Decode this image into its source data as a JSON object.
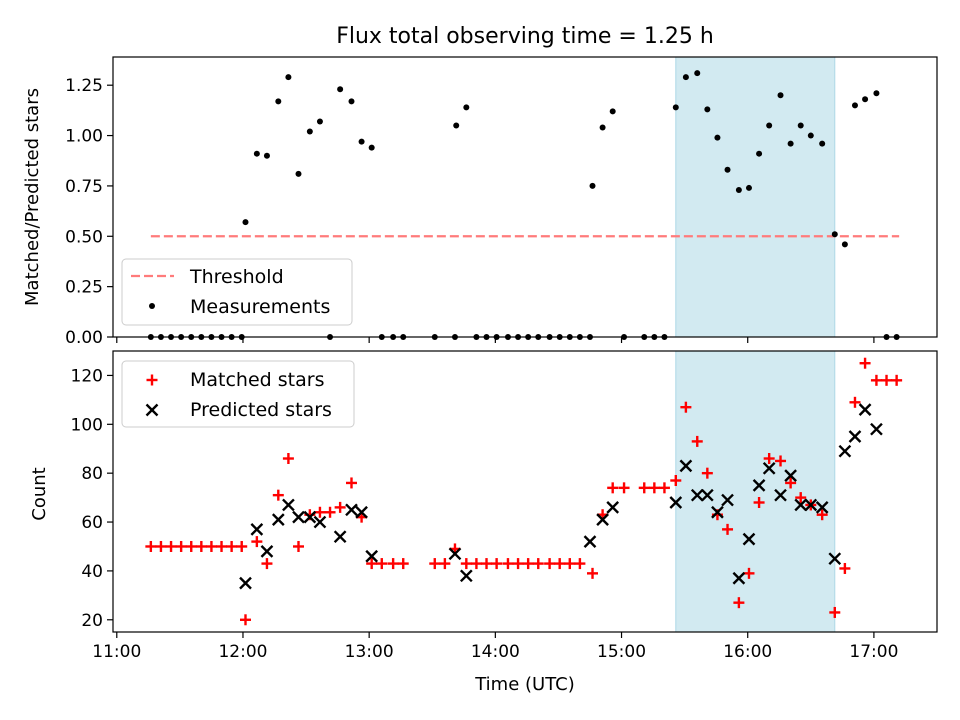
{
  "figure_title": "Flux total observing time = 1.25 h",
  "colors": {
    "threshold": "#ff7b7b",
    "span": "#add8e6",
    "matched": "#ff0000",
    "predicted": "#000000",
    "measurement": "#000000"
  },
  "chart_data": [
    {
      "type": "scatter",
      "title": "Flux total observing time = 1.25 h",
      "xlabel": "",
      "ylabel": "Matched/Predicted stars",
      "xlim": [
        10.97,
        17.5
      ],
      "ylim": [
        0,
        1.39
      ],
      "yticks": [
        0,
        0.25,
        0.5,
        0.75,
        1.0,
        1.25
      ],
      "ytick_labels": [
        "0.00",
        "0.25",
        "0.50",
        "0.75",
        "1.00",
        "1.25"
      ],
      "xticks": [
        11,
        12,
        13,
        14,
        15,
        16,
        17
      ],
      "legend_position": "lower-left",
      "highlight_span": [
        15.43,
        16.69
      ],
      "threshold": {
        "name": "Threshold",
        "value": 0.5,
        "x_range": [
          11.27,
          17.2
        ]
      },
      "series": [
        {
          "name": "Measurements",
          "x": [
            11.27,
            11.35,
            11.43,
            11.51,
            11.59,
            11.67,
            11.75,
            11.83,
            11.91,
            11.99,
            12.02,
            12.11,
            12.19,
            12.28,
            12.36,
            12.44,
            12.53,
            12.61,
            12.69,
            12.77,
            12.86,
            12.94,
            13.02,
            13.1,
            13.19,
            13.27,
            13.52,
            13.68,
            13.69,
            13.77,
            13.85,
            13.93,
            14.01,
            14.1,
            14.18,
            14.26,
            14.34,
            14.43,
            14.51,
            14.59,
            14.67,
            14.75,
            14.77,
            14.85,
            14.93,
            15.02,
            15.18,
            15.26,
            15.34,
            15.43,
            15.51,
            15.6,
            15.68,
            15.76,
            15.84,
            15.93,
            16.01,
            16.09,
            16.17,
            16.26,
            16.34,
            16.42,
            16.5,
            16.59,
            16.69,
            16.77,
            16.85,
            16.93,
            17.02,
            17.1,
            17.18
          ],
          "y": [
            0,
            0,
            0,
            0,
            0,
            0,
            0,
            0,
            0,
            0,
            0.57,
            0.91,
            0.9,
            1.17,
            1.29,
            0.81,
            1.02,
            1.07,
            0,
            1.23,
            1.17,
            0.97,
            0.94,
            0,
            0,
            0,
            0,
            0,
            1.05,
            1.14,
            0,
            0,
            0,
            0,
            0,
            0,
            0,
            0,
            0,
            0,
            0,
            0,
            0.75,
            1.04,
            1.12,
            0,
            0,
            0,
            0,
            1.14,
            1.29,
            1.31,
            1.13,
            0.99,
            0.83,
            0.73,
            0.74,
            0.91,
            1.05,
            1.2,
            0.96,
            1.05,
            1.0,
            0.96,
            0.51,
            0.46,
            1.15,
            1.18,
            1.21,
            0,
            0
          ]
        }
      ]
    },
    {
      "type": "scatter",
      "title": "",
      "xlabel": "Time (UTC)",
      "ylabel": "Count",
      "xlim": [
        10.97,
        17.5
      ],
      "ylim": [
        15,
        130
      ],
      "yticks": [
        20,
        40,
        60,
        80,
        100,
        120
      ],
      "ytick_labels": [
        "20",
        "40",
        "60",
        "80",
        "100",
        "120"
      ],
      "xticks": [
        11,
        12,
        13,
        14,
        15,
        16,
        17
      ],
      "xtick_labels": [
        "11:00",
        "12:00",
        "13:00",
        "14:00",
        "15:00",
        "16:00",
        "17:00"
      ],
      "legend_position": "upper-left",
      "highlight_span": [
        15.43,
        16.69
      ],
      "series": [
        {
          "name": "Matched stars",
          "marker": "plus",
          "x": [
            11.27,
            11.35,
            11.43,
            11.51,
            11.59,
            11.67,
            11.75,
            11.83,
            11.91,
            11.99,
            12.02,
            12.11,
            12.19,
            12.28,
            12.36,
            12.44,
            12.53,
            12.61,
            12.69,
            12.77,
            12.86,
            12.94,
            13.02,
            13.1,
            13.19,
            13.27,
            13.52,
            13.6,
            13.68,
            13.77,
            13.85,
            13.93,
            14.01,
            14.1,
            14.18,
            14.26,
            14.34,
            14.43,
            14.51,
            14.59,
            14.67,
            14.77,
            14.85,
            14.93,
            15.02,
            15.18,
            15.26,
            15.34,
            15.43,
            15.51,
            15.6,
            15.68,
            15.76,
            15.84,
            15.93,
            16.01,
            16.09,
            16.17,
            16.26,
            16.34,
            16.42,
            16.5,
            16.59,
            16.69,
            16.77,
            16.85,
            16.93,
            17.02,
            17.1,
            17.18
          ],
          "y": [
            50,
            50,
            50,
            50,
            50,
            50,
            50,
            50,
            50,
            50,
            20,
            52,
            43,
            71,
            86,
            50,
            63,
            64,
            64,
            66,
            76,
            62,
            43,
            43,
            43,
            43,
            43,
            43,
            49,
            43,
            43,
            43,
            43,
            43,
            43,
            43,
            43,
            43,
            43,
            43,
            43,
            39,
            63,
            74,
            74,
            74,
            74,
            74,
            77,
            107,
            93,
            80,
            63,
            57,
            27,
            39,
            68,
            86,
            85,
            76,
            70,
            67,
            63,
            23,
            41,
            109,
            125,
            118,
            118,
            118
          ]
        },
        {
          "name": "Predicted stars",
          "marker": "x",
          "x": [
            12.02,
            12.11,
            12.19,
            12.28,
            12.36,
            12.44,
            12.53,
            12.61,
            12.77,
            12.86,
            12.94,
            13.02,
            13.68,
            13.77,
            14.75,
            14.85,
            14.93,
            15.43,
            15.51,
            15.6,
            15.68,
            15.76,
            15.84,
            15.93,
            16.01,
            16.09,
            16.17,
            16.26,
            16.34,
            16.42,
            16.5,
            16.59,
            16.69,
            16.77,
            16.85,
            16.93,
            17.02
          ],
          "y": [
            35,
            57,
            48,
            61,
            67,
            62,
            62,
            60,
            54,
            65,
            64,
            46,
            47,
            38,
            52,
            61,
            66,
            68,
            83,
            71,
            71,
            64,
            69,
            37,
            53,
            75,
            82,
            71,
            79,
            67,
            67,
            66,
            45,
            89,
            95,
            106,
            98
          ]
        }
      ]
    }
  ]
}
